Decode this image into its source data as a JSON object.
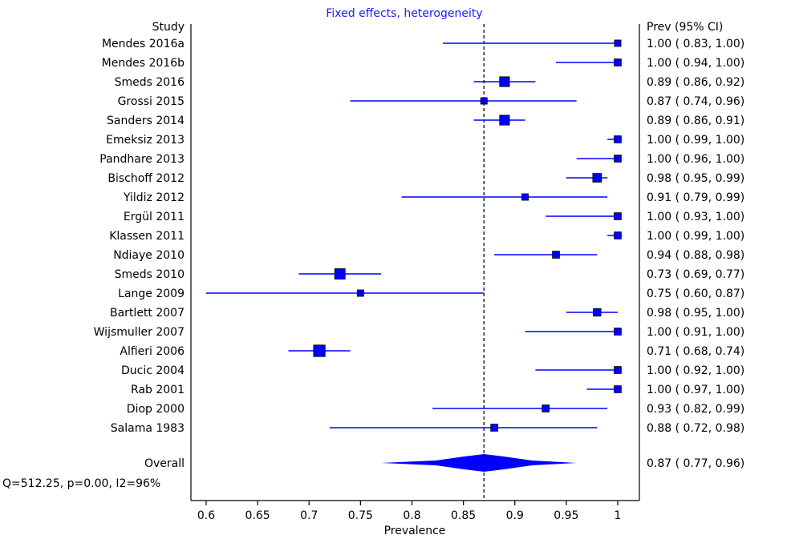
{
  "chart_data": {
    "type": "forest",
    "title": "Fixed effects, heterogeneity",
    "left_header": "Study",
    "right_header": "Prev (95% CI)",
    "xlabel": "Prevalence",
    "xlim": [
      0.6,
      1.0
    ],
    "xticks": [
      "0.6",
      "0.65",
      "0.7",
      "0.75",
      "0.8",
      "0.85",
      "0.9",
      "0.95",
      "1"
    ],
    "reference_line": 0.87,
    "colors": {
      "marker": "#0000ff",
      "line": "#0000ff",
      "reference": "#000000",
      "title": "#1a1aff"
    },
    "studies": [
      {
        "name": "Mendes 2016a",
        "est": 1.0,
        "lo": 0.83,
        "hi": 1.0,
        "weight": 0.3,
        "label": "1.00  ( 0.83, 1.00)"
      },
      {
        "name": "Mendes 2016b",
        "est": 1.0,
        "lo": 0.94,
        "hi": 1.0,
        "weight": 0.4,
        "label": "1.00  ( 0.94, 1.00)"
      },
      {
        "name": "Smeds 2016",
        "est": 0.89,
        "lo": 0.86,
        "hi": 0.92,
        "weight": 0.9,
        "label": "0.89  ( 0.86, 0.92)"
      },
      {
        "name": "Grossi 2015",
        "est": 0.87,
        "lo": 0.74,
        "hi": 0.96,
        "weight": 0.3,
        "label": "0.87  ( 0.74, 0.96)"
      },
      {
        "name": "Sanders 2014",
        "est": 0.89,
        "lo": 0.86,
        "hi": 0.91,
        "weight": 0.9,
        "label": "0.89  ( 0.86, 0.91)"
      },
      {
        "name": "Emeksiz 2013",
        "est": 1.0,
        "lo": 0.99,
        "hi": 1.0,
        "weight": 0.4,
        "label": "1.00  ( 0.99, 1.00)"
      },
      {
        "name": "Pandhare 2013",
        "est": 1.0,
        "lo": 0.96,
        "hi": 1.0,
        "weight": 0.4,
        "label": "1.00  ( 0.96, 1.00)"
      },
      {
        "name": "Bischoff 2012",
        "est": 0.98,
        "lo": 0.95,
        "hi": 0.99,
        "weight": 0.7,
        "label": "0.98  ( 0.95, 0.99)"
      },
      {
        "name": "Yildiz 2012",
        "est": 0.91,
        "lo": 0.79,
        "hi": 0.99,
        "weight": 0.3,
        "label": "0.91  ( 0.79, 0.99)"
      },
      {
        "name": "Ergül 2011",
        "est": 1.0,
        "lo": 0.93,
        "hi": 1.0,
        "weight": 0.4,
        "label": "1.00  ( 0.93, 1.00)"
      },
      {
        "name": "Klassen 2011",
        "est": 1.0,
        "lo": 0.99,
        "hi": 1.0,
        "weight": 0.4,
        "label": "1.00  ( 0.99, 1.00)"
      },
      {
        "name": "Ndiaye 2010",
        "est": 0.94,
        "lo": 0.88,
        "hi": 0.98,
        "weight": 0.4,
        "label": "0.94  ( 0.88, 0.98)"
      },
      {
        "name": "Smeds 2010",
        "est": 0.73,
        "lo": 0.69,
        "hi": 0.77,
        "weight": 1.0,
        "label": "0.73  ( 0.69, 0.77)"
      },
      {
        "name": "Lange 2009",
        "est": 0.75,
        "lo": 0.6,
        "hi": 0.87,
        "weight": 0.3,
        "label": "0.75  ( 0.60, 0.87)"
      },
      {
        "name": "Bartlett 2007",
        "est": 0.98,
        "lo": 0.95,
        "hi": 1.0,
        "weight": 0.5,
        "label": "0.98  ( 0.95, 1.00)"
      },
      {
        "name": "Wijsmuller 2007",
        "est": 1.0,
        "lo": 0.91,
        "hi": 1.0,
        "weight": 0.4,
        "label": "1.00  ( 0.91, 1.00)"
      },
      {
        "name": "Alfieri 2006",
        "est": 0.71,
        "lo": 0.68,
        "hi": 0.74,
        "weight": 1.2,
        "label": "0.71  ( 0.68, 0.74)"
      },
      {
        "name": "Ducic 2004",
        "est": 1.0,
        "lo": 0.92,
        "hi": 1.0,
        "weight": 0.4,
        "label": "1.00  ( 0.92, 1.00)"
      },
      {
        "name": "Rab 2001",
        "est": 1.0,
        "lo": 0.97,
        "hi": 1.0,
        "weight": 0.4,
        "label": "1.00  ( 0.97, 1.00)"
      },
      {
        "name": "Diop 2000",
        "est": 0.93,
        "lo": 0.82,
        "hi": 0.99,
        "weight": 0.4,
        "label": "0.93  ( 0.82, 0.99)"
      },
      {
        "name": "Salama 1983",
        "est": 0.88,
        "lo": 0.72,
        "hi": 0.98,
        "weight": 0.4,
        "label": "0.88  ( 0.72, 0.98)"
      }
    ],
    "overall": {
      "name": "Overall",
      "est": 0.87,
      "lo": 0.77,
      "hi": 0.96,
      "label": "0.87  ( 0.77, 0.96)",
      "heterogeneity": "Q=512.25, p=0.00, I2=96%"
    }
  }
}
